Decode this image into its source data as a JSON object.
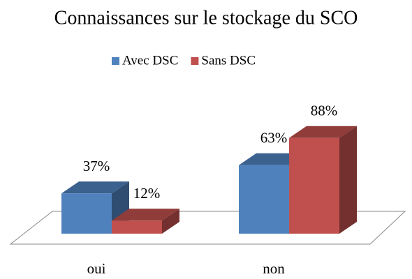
{
  "chart_data": {
    "type": "bar3d",
    "title": "Connaissances sur le stockage du SCO",
    "categories": [
      "oui",
      "non"
    ],
    "series": [
      {
        "name": "Avec DSC",
        "color": "#4f81bd",
        "values": [
          37,
          63
        ],
        "value_labels": [
          "37%",
          "63%"
        ]
      },
      {
        "name": "Sans DSC",
        "color": "#c0504d",
        "values": [
          12,
          88
        ],
        "value_labels": [
          "12%",
          "88%"
        ]
      }
    ],
    "legend": "top"
  }
}
